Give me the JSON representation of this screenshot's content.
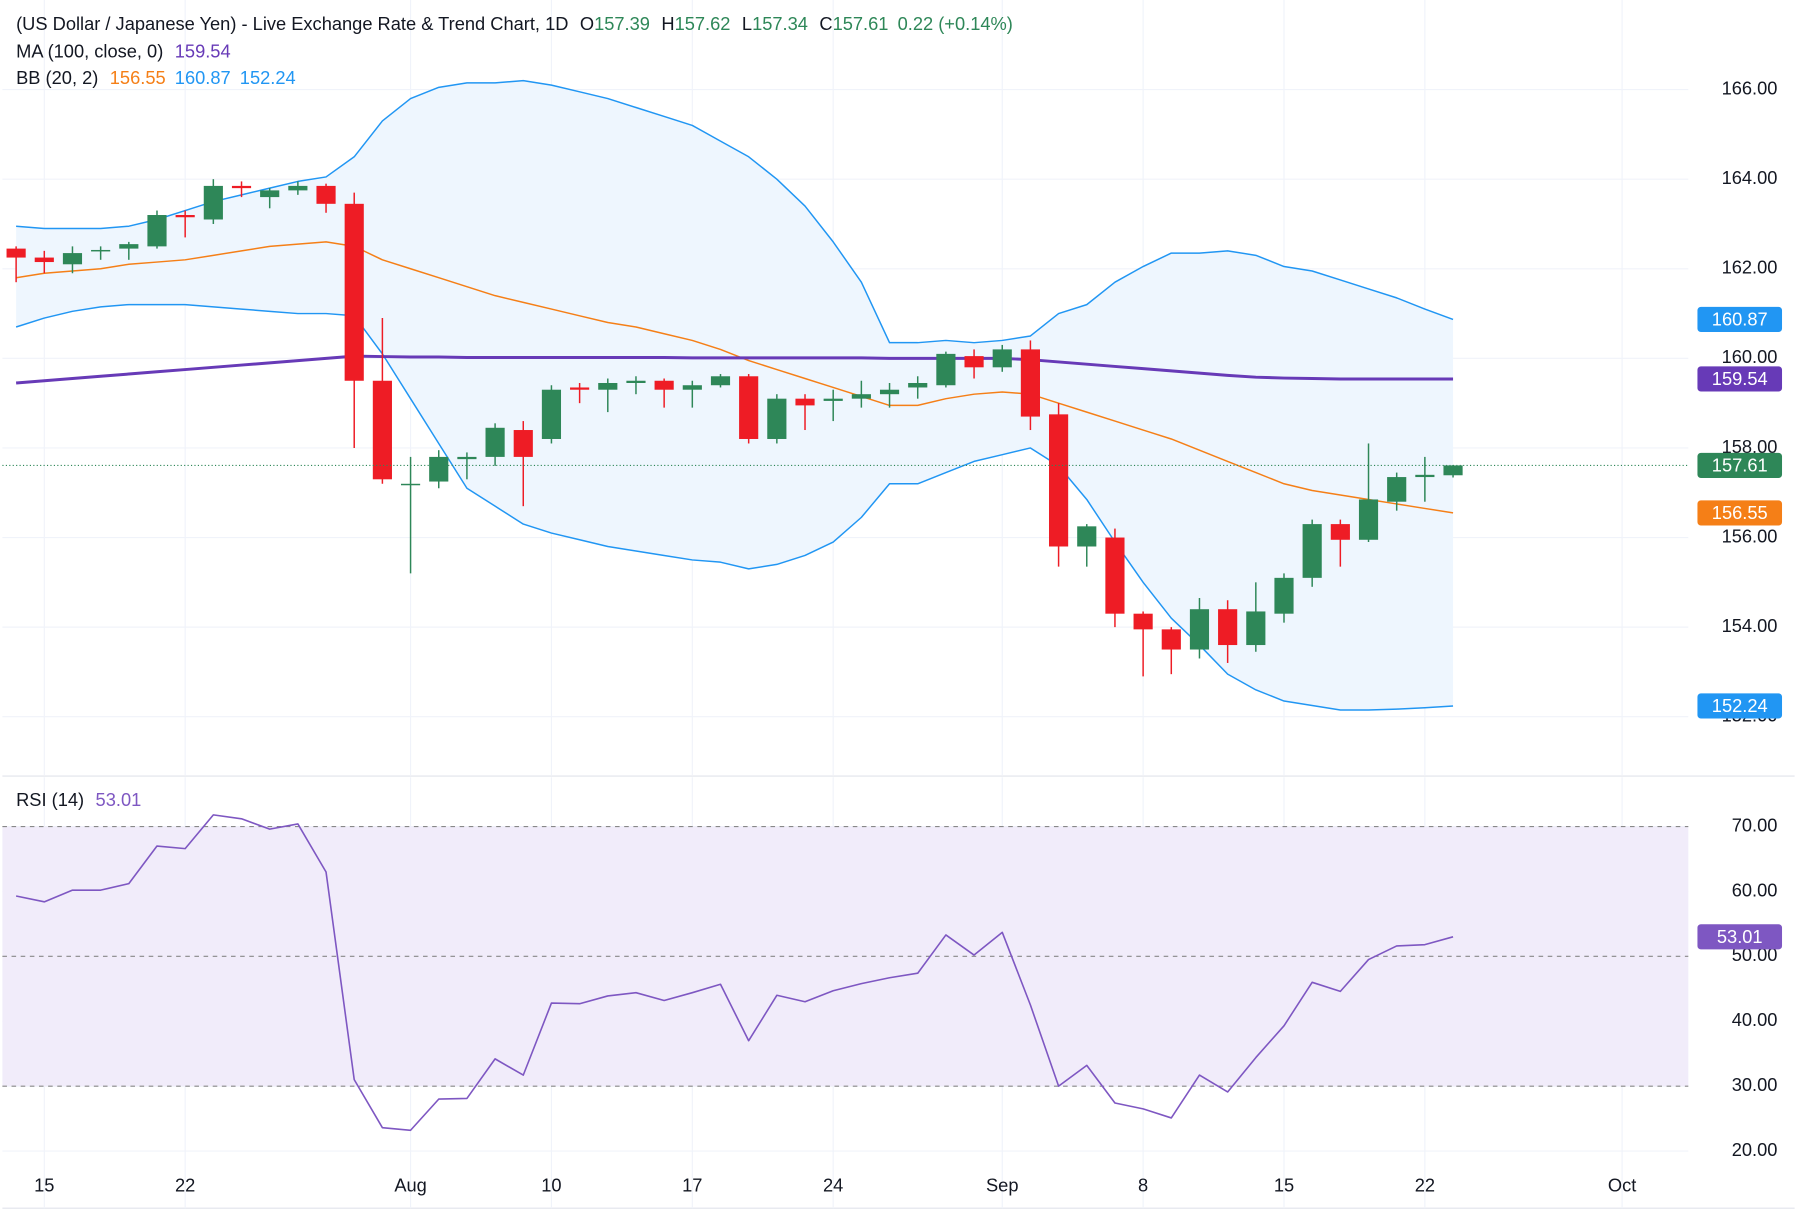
{
  "chart_data": {
    "type": "candlestick",
    "title": "(US Dollar / Japanese Yen) - Live Exchange Rate & Trend Chart, 1D",
    "header_labels": {
      "open": "O",
      "high": "H",
      "low": "L",
      "close": "C"
    },
    "change": "0.22 (+0.14%)",
    "categories": [
      null,
      null,
      null,
      null,
      null,
      null,
      null,
      null,
      null,
      null,
      null,
      null,
      null,
      null,
      null,
      null,
      null,
      null,
      null,
      null,
      null,
      null,
      null,
      null,
      null,
      null,
      null,
      null,
      null,
      null,
      null,
      null,
      null,
      null,
      null,
      null,
      null,
      null,
      null,
      null,
      null,
      null,
      null,
      null,
      null,
      null,
      null,
      null,
      null,
      null,
      null,
      null
    ],
    "xlim": [
      -0.487,
      59.35
    ],
    "xticks": [
      {
        "value": 1,
        "label": "15"
      },
      {
        "value": 6,
        "label": "22"
      },
      {
        "value": 14,
        "label": "Aug"
      },
      {
        "value": 19,
        "label": "10"
      },
      {
        "value": 24,
        "label": "17"
      },
      {
        "value": 29,
        "label": "24"
      },
      {
        "value": 35,
        "label": "Sep"
      },
      {
        "value": 40,
        "label": "8"
      },
      {
        "value": 45,
        "label": "15"
      },
      {
        "value": 50,
        "label": "22"
      },
      {
        "value": 57,
        "label": "Oct"
      }
    ],
    "ylim": [
      150.7,
      168.0
    ],
    "yticks": [
      {
        "value": 152,
        "label": "152.00"
      },
      {
        "value": 154,
        "label": "154.00"
      },
      {
        "value": 156,
        "label": "156.00"
      },
      {
        "value": 158,
        "label": "158.00"
      },
      {
        "value": 160,
        "label": "160.00"
      },
      {
        "value": 162,
        "label": "162.00"
      },
      {
        "value": 164,
        "label": "164.00"
      },
      {
        "value": 166,
        "label": "166.00"
      }
    ],
    "grid": true,
    "last_price_line": true,
    "candles": {
      "up_color": "#2e8758",
      "down_color": "#ee1c25",
      "open": [
        162.45,
        162.25,
        162.1,
        162.4,
        162.45,
        162.5,
        163.2,
        163.1,
        163.85,
        163.6,
        163.75,
        163.85,
        163.45,
        159.5,
        157.2,
        157.25,
        157.75,
        157.8,
        158.4,
        158.2,
        159.35,
        159.3,
        159.45,
        159.5,
        159.3,
        159.4,
        159.6,
        158.2,
        159.1,
        159.05,
        159.1,
        159.2,
        159.35,
        159.4,
        160.05,
        159.8,
        160.2,
        158.75,
        155.8,
        156.0,
        154.3,
        153.95,
        153.5,
        154.4,
        153.6,
        154.3,
        155.1,
        156.3,
        155.95,
        156.8,
        157.35,
        157.39
      ],
      "high": [
        162.5,
        162.4,
        162.5,
        162.5,
        162.6,
        163.3,
        163.3,
        164.0,
        163.95,
        163.8,
        163.95,
        163.9,
        163.7,
        160.9,
        157.8,
        157.95,
        157.9,
        158.55,
        158.6,
        159.4,
        159.45,
        159.55,
        159.6,
        159.55,
        159.5,
        159.65,
        159.65,
        159.2,
        159.2,
        159.3,
        159.5,
        159.45,
        159.6,
        160.15,
        160.2,
        160.3,
        160.4,
        159.0,
        156.3,
        156.2,
        154.35,
        154.0,
        154.65,
        154.6,
        155.0,
        155.2,
        156.4,
        156.4,
        158.1,
        157.45,
        157.8,
        157.62
      ],
      "low": [
        161.7,
        161.9,
        161.9,
        162.2,
        162.2,
        162.45,
        162.7,
        163.0,
        163.6,
        163.35,
        163.65,
        163.25,
        158.0,
        157.2,
        155.2,
        157.1,
        157.3,
        157.6,
        156.7,
        158.1,
        159.0,
        158.8,
        159.2,
        158.9,
        158.9,
        159.35,
        158.1,
        158.1,
        158.4,
        158.6,
        158.9,
        158.9,
        159.1,
        159.35,
        159.55,
        159.7,
        158.4,
        155.35,
        155.35,
        154.0,
        152.9,
        152.95,
        153.3,
        153.2,
        153.45,
        154.1,
        154.9,
        155.35,
        155.9,
        156.6,
        156.8,
        157.34
      ],
      "close": [
        162.25,
        162.15,
        162.35,
        162.42,
        162.55,
        163.2,
        163.15,
        163.85,
        163.8,
        163.75,
        163.85,
        163.45,
        159.5,
        157.3,
        157.2,
        157.8,
        157.8,
        158.45,
        157.8,
        159.3,
        159.3,
        159.45,
        159.5,
        159.3,
        159.4,
        159.6,
        158.2,
        159.1,
        158.95,
        159.1,
        159.2,
        159.3,
        159.45,
        160.1,
        159.8,
        160.2,
        158.7,
        155.8,
        156.25,
        154.3,
        153.95,
        153.5,
        154.4,
        153.6,
        154.35,
        155.1,
        156.3,
        155.95,
        156.85,
        157.35,
        157.4,
        157.61
      ]
    },
    "overlays": [
      {
        "name": "MA (100, close, 0)",
        "color": "#673ab7",
        "values": [
          159.45,
          159.5,
          159.55,
          159.6,
          159.65,
          159.7,
          159.75,
          159.8,
          159.85,
          159.9,
          159.95,
          160.0,
          160.05,
          160.04,
          160.03,
          160.03,
          160.02,
          160.02,
          160.02,
          160.02,
          160.02,
          160.02,
          160.02,
          160.02,
          160.01,
          160.01,
          160.01,
          160.01,
          160.01,
          160.01,
          160.01,
          160.0,
          160.0,
          160.0,
          160.0,
          160.0,
          159.97,
          159.92,
          159.87,
          159.82,
          159.77,
          159.72,
          159.67,
          159.62,
          159.58,
          159.56,
          159.55,
          159.54,
          159.54,
          159.54,
          159.54,
          159.54
        ]
      }
    ],
    "bollinger": {
      "name": "BB (20, 2)",
      "fill": "#eef6fe",
      "basis": {
        "color": "#f57f17",
        "values": [
          161.8,
          161.9,
          161.95,
          162.0,
          162.1,
          162.15,
          162.2,
          162.3,
          162.4,
          162.5,
          162.55,
          162.6,
          162.5,
          162.2,
          162.0,
          161.8,
          161.6,
          161.4,
          161.25,
          161.1,
          160.95,
          160.8,
          160.7,
          160.55,
          160.4,
          160.2,
          159.95,
          159.75,
          159.55,
          159.35,
          159.15,
          158.95,
          158.95,
          159.1,
          159.2,
          159.25,
          159.2,
          159.0,
          158.8,
          158.6,
          158.4,
          158.2,
          157.95,
          157.7,
          157.45,
          157.2,
          157.05,
          156.95,
          156.85,
          156.75,
          156.65,
          156.55
        ]
      },
      "upper": {
        "color": "#2196f3",
        "values": [
          162.95,
          162.9,
          162.9,
          162.9,
          162.95,
          163.1,
          163.3,
          163.5,
          163.65,
          163.8,
          163.95,
          164.05,
          164.5,
          165.3,
          165.8,
          166.05,
          166.15,
          166.15,
          166.2,
          166.1,
          165.95,
          165.8,
          165.6,
          165.4,
          165.2,
          164.85,
          164.5,
          164.0,
          163.4,
          162.6,
          161.7,
          160.35,
          160.35,
          160.4,
          160.35,
          160.4,
          160.5,
          161.0,
          161.2,
          161.7,
          162.05,
          162.35,
          162.35,
          162.4,
          162.3,
          162.05,
          161.95,
          161.75,
          161.55,
          161.35,
          161.1,
          160.87
        ]
      },
      "lower": {
        "color": "#2196f3",
        "values": [
          160.7,
          160.9,
          161.05,
          161.15,
          161.2,
          161.2,
          161.2,
          161.15,
          161.1,
          161.05,
          161.0,
          161.0,
          160.95,
          160.1,
          159.1,
          158.1,
          157.1,
          156.7,
          156.3,
          156.1,
          155.95,
          155.8,
          155.7,
          155.6,
          155.5,
          155.45,
          155.3,
          155.4,
          155.6,
          155.9,
          156.45,
          157.2,
          157.2,
          157.45,
          157.7,
          157.85,
          158.0,
          157.6,
          156.85,
          155.9,
          155.0,
          154.2,
          153.6,
          152.95,
          152.6,
          152.35,
          152.25,
          152.15,
          152.15,
          152.17,
          152.2,
          152.24
        ]
      }
    },
    "rsi": {
      "name": "RSI (14)",
      "color": "#7e57c2",
      "band_color": "#f1ecfa",
      "values": [
        59.3,
        58.4,
        60.2,
        60.2,
        61.2,
        67.0,
        66.6,
        71.8,
        71.2,
        69.6,
        70.4,
        63.0,
        31.0,
        23.6,
        23.2,
        28.0,
        28.1,
        34.2,
        31.7,
        42.8,
        42.7,
        43.9,
        44.4,
        43.2,
        44.4,
        45.7,
        37.0,
        44.0,
        43.0,
        44.7,
        45.8,
        46.7,
        47.4,
        53.3,
        50.2,
        53.7,
        42.5,
        30.0,
        33.2,
        27.4,
        26.5,
        25.1,
        31.7,
        29.1,
        34.4,
        39.3,
        46.0,
        44.6,
        49.5,
        51.6,
        51.8,
        53.01
      ],
      "ylim": [
        11.2,
        77.6
      ],
      "yticks": [
        {
          "value": 20,
          "label": "20.00"
        },
        {
          "value": 30,
          "label": "30.00"
        },
        {
          "value": 40,
          "label": "40.00"
        },
        {
          "value": 50,
          "label": "50.00"
        },
        {
          "value": 60,
          "label": "60.00"
        },
        {
          "value": 70,
          "label": "70.00"
        }
      ],
      "levels": [
        70,
        50,
        30
      ]
    }
  }
}
